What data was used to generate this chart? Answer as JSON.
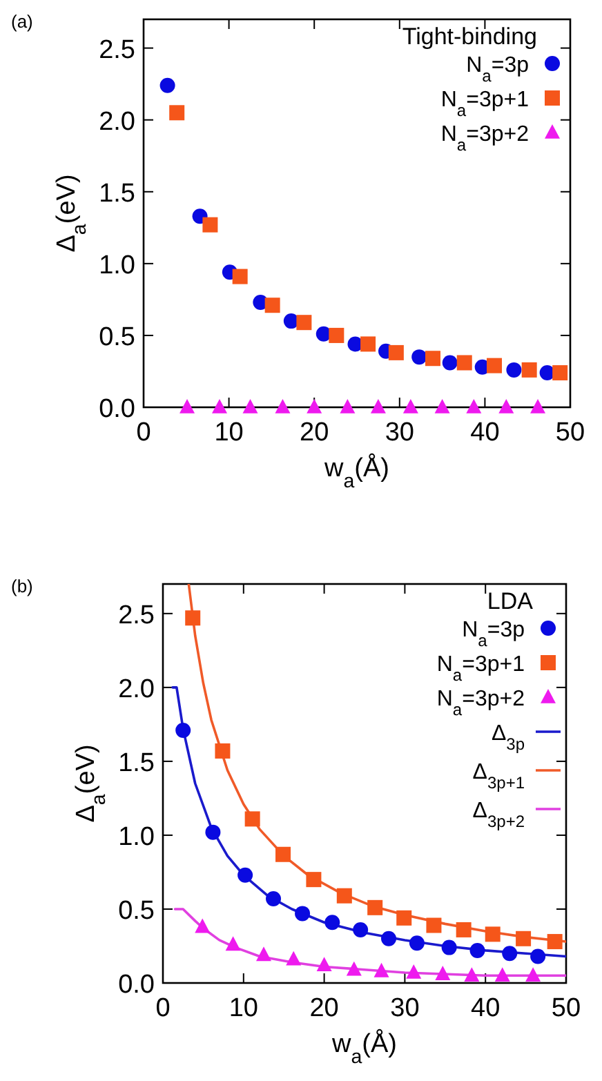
{
  "chart_data": [
    {
      "type": "scatter",
      "annotations": [
        "(a)"
      ],
      "legend_title": "Tight-binding",
      "legend": "top right",
      "xlabel": "w$_{a}$(Å)",
      "ylabel": "Δ$_{a}$(eV)",
      "xlim": [
        0,
        50
      ],
      "ylim": [
        0,
        2.7
      ],
      "xticks": [
        0,
        10,
        20,
        30,
        40,
        50
      ],
      "yticks": [
        {
          "value": 0,
          "label": "0.0"
        },
        0.5,
        {
          "value": 1,
          "label": "1.0"
        },
        1.5,
        {
          "value": 2,
          "label": "2.0"
        },
        2.5
      ],
      "series": [
        {
          "name": "N$_{a}$=3p",
          "marker": "circle",
          "color": "#0a0ae0",
          "x": [
            2.8,
            6.6,
            10.1,
            13.7,
            17.3,
            21.1,
            24.8,
            28.4,
            32.3,
            35.9,
            39.7,
            43.4,
            47.3
          ],
          "values": [
            2.24,
            1.33,
            0.94,
            0.73,
            0.6,
            0.51,
            0.44,
            0.39,
            0.35,
            0.31,
            0.28,
            0.26,
            0.24
          ]
        },
        {
          "name": "N$_{a}$=3p+1",
          "marker": "square",
          "color": "#f5561a",
          "x": [
            3.9,
            7.8,
            11.3,
            15.1,
            18.8,
            22.6,
            26.3,
            29.6,
            33.9,
            37.6,
            41.1,
            45.2,
            48.8
          ],
          "values": [
            2.05,
            1.27,
            0.91,
            0.71,
            0.59,
            0.5,
            0.44,
            0.38,
            0.34,
            0.31,
            0.29,
            0.26,
            0.24
          ]
        },
        {
          "name": "N$_{a}$=3p+2",
          "marker": "triangle",
          "color": "#ee1aee",
          "x": [
            5.1,
            8.9,
            12.5,
            16.3,
            20,
            23.9,
            27.5,
            31.3,
            35,
            38.7,
            42.5,
            46.2
          ],
          "values": [
            0,
            0,
            0,
            0,
            0,
            0,
            0,
            0,
            0,
            0,
            0,
            0
          ]
        }
      ]
    },
    {
      "type": "scatter",
      "annotations": [
        "(b)"
      ],
      "legend_title": "LDA",
      "legend": "top right",
      "xlabel": "w$_{a}$(Å)",
      "ylabel": "Δ$_{a}$(eV)",
      "xlim": [
        0,
        50
      ],
      "ylim": [
        0,
        2.7
      ],
      "xticks": [
        0,
        10,
        20,
        30,
        40,
        50
      ],
      "yticks": [
        {
          "value": 0,
          "label": "0.0"
        },
        0.5,
        {
          "value": 1,
          "label": "1.0"
        },
        1.5,
        {
          "value": 2,
          "label": "2.0"
        },
        2.5
      ],
      "series": [
        {
          "name": "N$_{a}$=3p",
          "marker": "circle",
          "color": "#0a0ae0",
          "x": [
            2.5,
            6.2,
            10.2,
            13.7,
            17.3,
            21,
            24.5,
            28,
            31.5,
            35.5,
            39,
            43,
            46.5
          ],
          "values": [
            1.71,
            1.02,
            0.73,
            0.57,
            0.47,
            0.41,
            0.36,
            0.3,
            0.27,
            0.24,
            0.22,
            0.2,
            0.18
          ]
        },
        {
          "name": "N$_{a}$=3p+1",
          "marker": "square",
          "color": "#f5561a",
          "x": [
            3.7,
            7.4,
            11.1,
            14.9,
            18.7,
            22.5,
            26.3,
            29.9,
            33.6,
            37.3,
            40.9,
            44.7,
            48.6
          ],
          "values": [
            2.47,
            1.57,
            1.11,
            0.87,
            0.7,
            0.59,
            0.51,
            0.44,
            0.39,
            0.36,
            0.33,
            0.3,
            0.28
          ]
        },
        {
          "name": "N$_{a}$=3p+2",
          "marker": "triangle",
          "color": "#ee1aee",
          "x": [
            4.9,
            8.7,
            12.5,
            16.2,
            20,
            23.7,
            27.1,
            31.1,
            34.7,
            38.3,
            42.1,
            45.9
          ],
          "values": [
            0.38,
            0.26,
            0.19,
            0.16,
            0.12,
            0.09,
            0.08,
            0.07,
            0.06,
            0.05,
            0.05,
            0.05
          ]
        },
        {
          "name": "Δ$_{3p}$",
          "type": "line",
          "color": "#1a1acc",
          "x": [
            1.2,
            1.7,
            2.5,
            4,
            6,
            8,
            10,
            13,
            16,
            20,
            25,
            30,
            35,
            40,
            45,
            50
          ],
          "values": [
            2.0,
            2.0,
            1.72,
            1.35,
            1.05,
            0.86,
            0.73,
            0.59,
            0.5,
            0.41,
            0.34,
            0.29,
            0.25,
            0.22,
            0.2,
            0.18
          ]
        },
        {
          "name": "Δ$_{3p+1}$",
          "type": "line",
          "color": "#f05a28",
          "x": [
            3.2,
            4,
            5,
            6,
            8,
            10,
            12,
            15,
            18,
            22,
            26,
            30,
            35,
            40,
            45,
            50
          ],
          "values": [
            2.7,
            2.35,
            2.03,
            1.78,
            1.44,
            1.21,
            1.04,
            0.86,
            0.73,
            0.61,
            0.52,
            0.46,
            0.4,
            0.35,
            0.31,
            0.28
          ]
        },
        {
          "name": "Δ$_{3p+2}$",
          "type": "line",
          "color": "#e040e0",
          "x": [
            1.5,
            2.5,
            4,
            5,
            7,
            9,
            12,
            16,
            20,
            25,
            30,
            40,
            50
          ],
          "values": [
            0.5,
            0.5,
            0.42,
            0.37,
            0.29,
            0.24,
            0.18,
            0.14,
            0.11,
            0.09,
            0.07,
            0.05,
            0.05
          ]
        }
      ]
    }
  ]
}
